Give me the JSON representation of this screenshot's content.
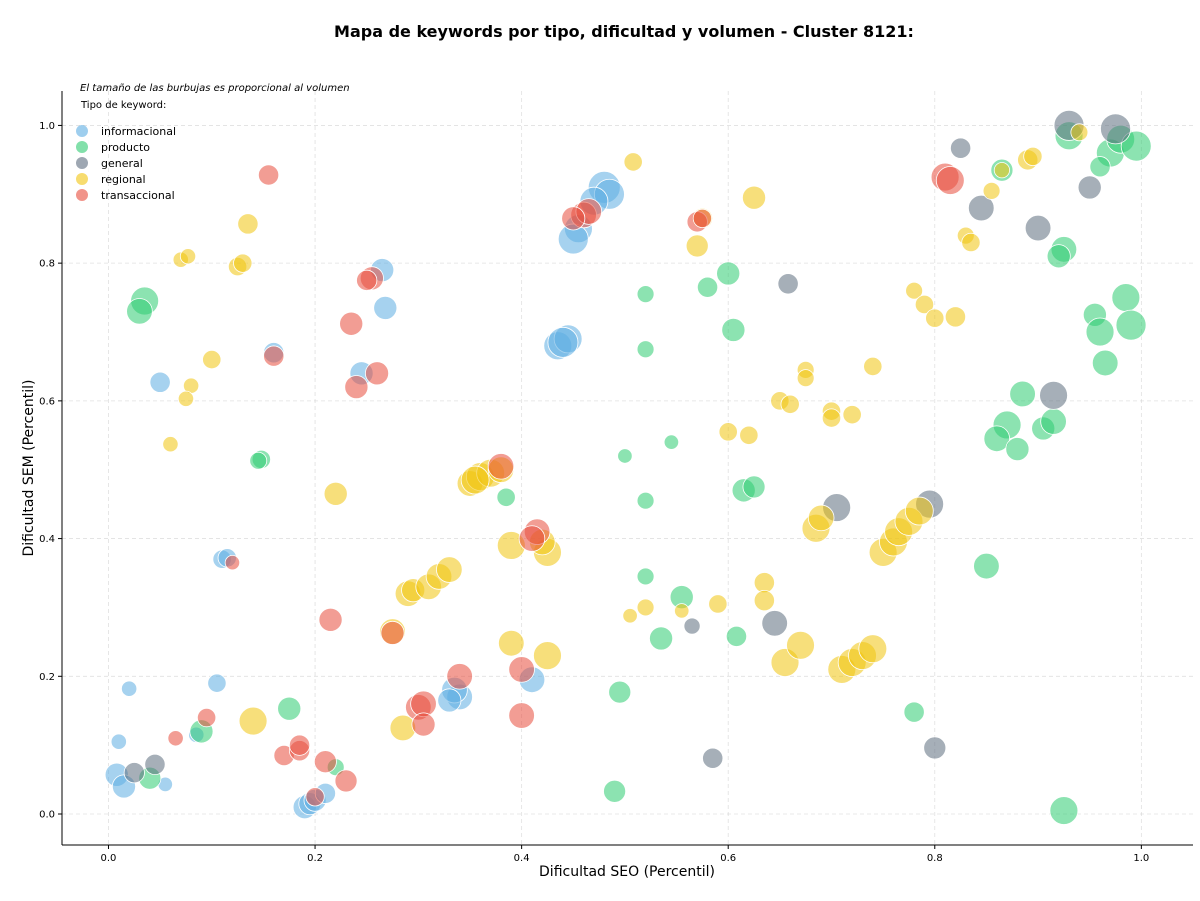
{
  "chart_data": {
    "type": "scatter",
    "title": "Mapa de keywords por tipo, dificultad y volumen - Cluster 8121:",
    "xlabel": "Dificultad SEO (Percentil)",
    "ylabel": "Dificultad SEM (Percentil)",
    "xlim": [
      -0.045,
      1.05
    ],
    "ylim": [
      -0.045,
      1.05
    ],
    "xticks": [
      "0.0",
      "0.2",
      "0.4",
      "0.6",
      "0.8",
      "1.0"
    ],
    "yticks": [
      "0.0",
      "0.2",
      "0.4",
      "0.6",
      "0.8",
      "1.0"
    ],
    "grid": true,
    "size_note": "El tamaño de las burbujas es proporcional al volumen",
    "legend_title": "Tipo de keyword:",
    "legend_position": "top-left",
    "series": [
      {
        "name": "informacional",
        "color": "#5dade2",
        "points": [
          [
            0.48,
            0.91,
            4
          ],
          [
            0.485,
            0.9,
            3.5
          ],
          [
            0.47,
            0.89,
            3
          ],
          [
            0.455,
            0.85,
            3
          ],
          [
            0.45,
            0.835,
            3.5
          ],
          [
            0.435,
            0.68,
            3
          ],
          [
            0.445,
            0.69,
            3
          ],
          [
            0.44,
            0.685,
            3.5
          ],
          [
            0.265,
            0.79,
            2
          ],
          [
            0.268,
            0.735,
            2
          ],
          [
            0.245,
            0.64,
            2
          ],
          [
            0.16,
            0.67,
            1.5
          ],
          [
            0.05,
            0.627,
            1.5
          ],
          [
            0.11,
            0.37,
            1.2
          ],
          [
            0.115,
            0.372,
            1.2
          ],
          [
            0.105,
            0.19,
            1.2
          ],
          [
            0.34,
            0.17,
            2.5
          ],
          [
            0.335,
            0.18,
            2.5
          ],
          [
            0.33,
            0.165,
            2
          ],
          [
            0.41,
            0.195,
            2.5
          ],
          [
            0.008,
            0.057,
            2
          ],
          [
            0.015,
            0.04,
            2
          ],
          [
            0.02,
            0.182,
            0.8
          ],
          [
            0.01,
            0.105,
            0.8
          ],
          [
            0.055,
            0.043,
            0.7
          ],
          [
            0.19,
            0.01,
            2
          ],
          [
            0.195,
            0.015,
            1.8
          ],
          [
            0.2,
            0.02,
            1.8
          ],
          [
            0.21,
            0.03,
            1.5
          ],
          [
            0.085,
            0.115,
            0.8
          ]
        ]
      },
      {
        "name": "producto",
        "color": "#2ecc71",
        "points": [
          [
            0.035,
            0.745,
            3
          ],
          [
            0.03,
            0.73,
            2.5
          ],
          [
            0.148,
            0.515,
            1.2
          ],
          [
            0.145,
            0.513,
            1
          ],
          [
            0.175,
            0.153,
            2
          ],
          [
            0.09,
            0.12,
            2
          ],
          [
            0.04,
            0.052,
            1.8
          ],
          [
            0.22,
            0.068,
            1
          ],
          [
            0.52,
            0.755,
            1
          ],
          [
            0.52,
            0.675,
            1
          ],
          [
            0.5,
            0.52,
            0.7
          ],
          [
            0.545,
            0.54,
            0.7
          ],
          [
            0.385,
            0.46,
            1.2
          ],
          [
            0.52,
            0.455,
            1
          ],
          [
            0.52,
            0.345,
            1
          ],
          [
            0.555,
            0.315,
            2
          ],
          [
            0.535,
            0.255,
            2
          ],
          [
            0.608,
            0.258,
            1.5
          ],
          [
            0.495,
            0.177,
            1.8
          ],
          [
            0.49,
            0.033,
            1.8
          ],
          [
            0.58,
            0.765,
            1.5
          ],
          [
            0.6,
            0.785,
            2
          ],
          [
            0.605,
            0.703,
            2
          ],
          [
            0.615,
            0.47,
            2
          ],
          [
            0.625,
            0.475,
            1.8
          ],
          [
            0.865,
            0.935,
            1.8
          ],
          [
            0.93,
            0.985,
            3
          ],
          [
            0.97,
            0.96,
            3
          ],
          [
            0.98,
            0.98,
            3
          ],
          [
            0.995,
            0.97,
            3.5
          ],
          [
            0.96,
            0.94,
            1.5
          ],
          [
            0.925,
            0.82,
            2.5
          ],
          [
            0.92,
            0.81,
            2
          ],
          [
            0.955,
            0.725,
            2
          ],
          [
            0.96,
            0.7,
            3
          ],
          [
            0.985,
            0.75,
            3
          ],
          [
            0.99,
            0.71,
            3.5
          ],
          [
            0.965,
            0.655,
            2.5
          ],
          [
            0.885,
            0.61,
            2.5
          ],
          [
            0.87,
            0.565,
            3
          ],
          [
            0.86,
            0.545,
            2.5
          ],
          [
            0.88,
            0.53,
            2
          ],
          [
            0.905,
            0.56,
            2
          ],
          [
            0.915,
            0.57,
            2.5
          ],
          [
            0.85,
            0.36,
            2.5
          ],
          [
            0.78,
            0.148,
            1.5
          ],
          [
            0.925,
            0.005,
            3
          ]
        ]
      },
      {
        "name": "general",
        "color": "#5d6d7e",
        "points": [
          [
            0.025,
            0.06,
            1.5
          ],
          [
            0.045,
            0.072,
            1.5
          ],
          [
            0.565,
            0.273,
            0.9
          ],
          [
            0.585,
            0.081,
            1.5
          ],
          [
            0.645,
            0.277,
            2.5
          ],
          [
            0.658,
            0.77,
            1.5
          ],
          [
            0.705,
            0.445,
            3
          ],
          [
            0.795,
            0.45,
            3
          ],
          [
            0.8,
            0.096,
            1.8
          ],
          [
            0.825,
            0.967,
            1.5
          ],
          [
            0.845,
            0.88,
            2.5
          ],
          [
            0.9,
            0.851,
            2.5
          ],
          [
            0.93,
            1.0,
            3.5
          ],
          [
            0.975,
            0.995,
            3.5
          ],
          [
            0.95,
            0.91,
            2
          ],
          [
            0.915,
            0.608,
            3
          ]
        ]
      },
      {
        "name": "regional",
        "color": "#f1c40f",
        "points": [
          [
            0.508,
            0.947,
            1.2
          ],
          [
            0.625,
            0.895,
            2
          ],
          [
            0.575,
            0.865,
            1.5
          ],
          [
            0.57,
            0.825,
            1.8
          ],
          [
            0.135,
            0.857,
            1.5
          ],
          [
            0.07,
            0.805,
            0.8
          ],
          [
            0.077,
            0.81,
            0.8
          ],
          [
            0.125,
            0.795,
            1.2
          ],
          [
            0.13,
            0.8,
            1.2
          ],
          [
            0.1,
            0.66,
            1.2
          ],
          [
            0.08,
            0.622,
            0.8
          ],
          [
            0.075,
            0.603,
            0.8
          ],
          [
            0.06,
            0.537,
            0.8
          ],
          [
            0.22,
            0.465,
            2
          ],
          [
            0.35,
            0.48,
            2.5
          ],
          [
            0.36,
            0.49,
            3
          ],
          [
            0.37,
            0.495,
            3
          ],
          [
            0.38,
            0.5,
            2.5
          ],
          [
            0.355,
            0.485,
            3
          ],
          [
            0.39,
            0.39,
            3
          ],
          [
            0.425,
            0.38,
            3
          ],
          [
            0.42,
            0.395,
            2.5
          ],
          [
            0.29,
            0.32,
            2.5
          ],
          [
            0.295,
            0.325,
            2
          ],
          [
            0.31,
            0.33,
            2.5
          ],
          [
            0.32,
            0.345,
            2.5
          ],
          [
            0.33,
            0.355,
            2.5
          ],
          [
            0.275,
            0.265,
            2.5
          ],
          [
            0.285,
            0.125,
            2.5
          ],
          [
            0.14,
            0.135,
            3
          ],
          [
            0.39,
            0.248,
            2.5
          ],
          [
            0.425,
            0.23,
            3
          ],
          [
            0.505,
            0.288,
            0.7
          ],
          [
            0.52,
            0.3,
            1
          ],
          [
            0.555,
            0.295,
            0.7
          ],
          [
            0.59,
            0.305,
            1.2
          ],
          [
            0.635,
            0.336,
            1.5
          ],
          [
            0.635,
            0.31,
            1.5
          ],
          [
            0.655,
            0.22,
            3
          ],
          [
            0.67,
            0.245,
            3
          ],
          [
            0.71,
            0.21,
            3
          ],
          [
            0.72,
            0.22,
            3
          ],
          [
            0.73,
            0.23,
            3
          ],
          [
            0.74,
            0.24,
            3
          ],
          [
            0.75,
            0.38,
            3
          ],
          [
            0.76,
            0.395,
            3
          ],
          [
            0.765,
            0.41,
            3
          ],
          [
            0.775,
            0.425,
            3
          ],
          [
            0.785,
            0.44,
            3
          ],
          [
            0.685,
            0.415,
            3
          ],
          [
            0.69,
            0.43,
            2.5
          ],
          [
            0.6,
            0.555,
            1.2
          ],
          [
            0.62,
            0.55,
            1.2
          ],
          [
            0.65,
            0.6,
            1.2
          ],
          [
            0.66,
            0.595,
            1.2
          ],
          [
            0.675,
            0.645,
            1
          ],
          [
            0.675,
            0.633,
            1
          ],
          [
            0.7,
            0.585,
            1.2
          ],
          [
            0.7,
            0.575,
            1.2
          ],
          [
            0.72,
            0.58,
            1.2
          ],
          [
            0.74,
            0.65,
            1.2
          ],
          [
            0.78,
            0.76,
            1
          ],
          [
            0.79,
            0.74,
            1.2
          ],
          [
            0.8,
            0.72,
            1.2
          ],
          [
            0.82,
            0.722,
            1.5
          ],
          [
            0.83,
            0.84,
            1
          ],
          [
            0.835,
            0.83,
            1.2
          ],
          [
            0.855,
            0.905,
            1
          ],
          [
            0.865,
            0.935,
            0.8
          ],
          [
            0.89,
            0.95,
            1.5
          ],
          [
            0.895,
            0.955,
            1.2
          ],
          [
            0.94,
            0.99,
            1
          ]
        ]
      },
      {
        "name": "transaccional",
        "color": "#e74c3c",
        "points": [
          [
            0.155,
            0.928,
            1.5
          ],
          [
            0.255,
            0.778,
            2
          ],
          [
            0.25,
            0.775,
            1.5
          ],
          [
            0.235,
            0.712,
            2
          ],
          [
            0.16,
            0.665,
            1.5
          ],
          [
            0.26,
            0.64,
            2
          ],
          [
            0.24,
            0.62,
            2
          ],
          [
            0.46,
            0.87,
            2.5
          ],
          [
            0.465,
            0.875,
            2.5
          ],
          [
            0.45,
            0.865,
            2
          ],
          [
            0.57,
            0.86,
            1.5
          ],
          [
            0.575,
            0.865,
            1.2
          ],
          [
            0.38,
            0.505,
            2.5
          ],
          [
            0.415,
            0.41,
            2.5
          ],
          [
            0.41,
            0.4,
            2.5
          ],
          [
            0.215,
            0.282,
            2
          ],
          [
            0.275,
            0.263,
            2
          ],
          [
            0.34,
            0.2,
            2.5
          ],
          [
            0.4,
            0.21,
            2.5
          ],
          [
            0.4,
            0.143,
            2.5
          ],
          [
            0.3,
            0.155,
            2.5
          ],
          [
            0.305,
            0.16,
            2.5
          ],
          [
            0.305,
            0.13,
            2
          ],
          [
            0.095,
            0.14,
            1.2
          ],
          [
            0.065,
            0.11,
            0.8
          ],
          [
            0.12,
            0.365,
            0.7
          ],
          [
            0.17,
            0.085,
            1.5
          ],
          [
            0.185,
            0.092,
            1.5
          ],
          [
            0.185,
            0.1,
            1.5
          ],
          [
            0.21,
            0.076,
            1.8
          ],
          [
            0.23,
            0.048,
            1.8
          ],
          [
            0.2,
            0.025,
            1.2
          ],
          [
            0.81,
            0.925,
            3
          ],
          [
            0.815,
            0.92,
            3
          ]
        ]
      }
    ]
  }
}
